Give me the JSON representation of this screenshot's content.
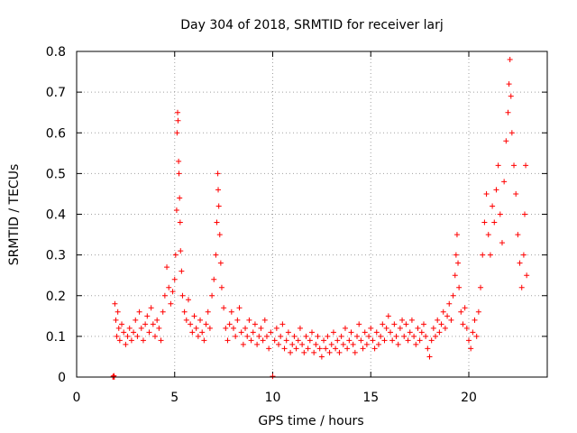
{
  "chart_data": {
    "type": "scatter",
    "title": "Day 304 of 2018, SRMTID for receiver larj",
    "xlabel": "GPS time / hours",
    "ylabel": "SRMTID / TECUs",
    "xlim": [
      0,
      24
    ],
    "ylim": [
      0,
      0.8
    ],
    "xticks": [
      0,
      5,
      10,
      15,
      20
    ],
    "yticks": [
      0,
      0.1,
      0.2,
      0.3,
      0.4,
      0.5,
      0.6,
      0.7,
      0.8
    ],
    "xtick_labels": [
      "0",
      "5",
      "10",
      "15",
      "20"
    ],
    "ytick_labels": [
      "0",
      "0.1",
      "0.2",
      "0.3",
      "0.4",
      "0.5",
      "0.6",
      "0.7",
      "0.8"
    ],
    "grid": true,
    "marker": "+",
    "color": "#ff0000",
    "series": [
      {
        "name": "SRMTID",
        "points": [
          [
            1.85,
            0.0
          ],
          [
            1.87,
            0.002
          ],
          [
            1.9,
            0.003
          ],
          [
            1.92,
            0.0
          ],
          [
            1.95,
            0.18
          ],
          [
            2.0,
            0.14
          ],
          [
            2.05,
            0.1
          ],
          [
            2.1,
            0.16
          ],
          [
            2.15,
            0.12
          ],
          [
            2.2,
            0.09
          ],
          [
            2.3,
            0.13
          ],
          [
            2.4,
            0.11
          ],
          [
            2.5,
            0.08
          ],
          [
            2.6,
            0.1
          ],
          [
            2.7,
            0.12
          ],
          [
            2.8,
            0.09
          ],
          [
            2.9,
            0.11
          ],
          [
            3.0,
            0.14
          ],
          [
            3.1,
            0.1
          ],
          [
            3.2,
            0.16
          ],
          [
            3.3,
            0.12
          ],
          [
            3.4,
            0.09
          ],
          [
            3.5,
            0.13
          ],
          [
            3.6,
            0.15
          ],
          [
            3.7,
            0.11
          ],
          [
            3.8,
            0.17
          ],
          [
            3.9,
            0.13
          ],
          [
            4.0,
            0.1
          ],
          [
            4.1,
            0.14
          ],
          [
            4.2,
            0.12
          ],
          [
            4.3,
            0.09
          ],
          [
            4.4,
            0.16
          ],
          [
            4.5,
            0.2
          ],
          [
            4.6,
            0.27
          ],
          [
            4.7,
            0.22
          ],
          [
            4.8,
            0.18
          ],
          [
            4.9,
            0.21
          ],
          [
            5.0,
            0.24
          ],
          [
            5.05,
            0.3
          ],
          [
            5.1,
            0.41
          ],
          [
            5.12,
            0.6
          ],
          [
            5.15,
            0.65
          ],
          [
            5.17,
            0.63
          ],
          [
            5.2,
            0.53
          ],
          [
            5.22,
            0.5
          ],
          [
            5.25,
            0.44
          ],
          [
            5.28,
            0.38
          ],
          [
            5.3,
            0.31
          ],
          [
            5.35,
            0.26
          ],
          [
            5.4,
            0.2
          ],
          [
            5.5,
            0.16
          ],
          [
            5.6,
            0.14
          ],
          [
            5.7,
            0.19
          ],
          [
            5.8,
            0.13
          ],
          [
            5.9,
            0.11
          ],
          [
            6.0,
            0.15
          ],
          [
            6.1,
            0.12
          ],
          [
            6.2,
            0.1
          ],
          [
            6.3,
            0.14
          ],
          [
            6.4,
            0.11
          ],
          [
            6.5,
            0.09
          ],
          [
            6.6,
            0.13
          ],
          [
            6.7,
            0.16
          ],
          [
            6.8,
            0.12
          ],
          [
            6.9,
            0.2
          ],
          [
            7.0,
            0.24
          ],
          [
            7.1,
            0.3
          ],
          [
            7.15,
            0.38
          ],
          [
            7.2,
            0.5
          ],
          [
            7.22,
            0.46
          ],
          [
            7.25,
            0.42
          ],
          [
            7.3,
            0.35
          ],
          [
            7.35,
            0.28
          ],
          [
            7.4,
            0.22
          ],
          [
            7.5,
            0.17
          ],
          [
            7.6,
            0.12
          ],
          [
            7.7,
            0.09
          ],
          [
            7.8,
            0.13
          ],
          [
            7.9,
            0.16
          ],
          [
            8.0,
            0.12
          ],
          [
            8.1,
            0.1
          ],
          [
            8.2,
            0.14
          ],
          [
            8.3,
            0.17
          ],
          [
            8.4,
            0.11
          ],
          [
            8.5,
            0.08
          ],
          [
            8.6,
            0.12
          ],
          [
            8.7,
            0.1
          ],
          [
            8.8,
            0.14
          ],
          [
            8.9,
            0.09
          ],
          [
            9.0,
            0.11
          ],
          [
            9.1,
            0.13
          ],
          [
            9.2,
            0.08
          ],
          [
            9.3,
            0.1
          ],
          [
            9.4,
            0.12
          ],
          [
            9.5,
            0.09
          ],
          [
            9.6,
            0.14
          ],
          [
            9.7,
            0.1
          ],
          [
            9.8,
            0.07
          ],
          [
            9.9,
            0.11
          ],
          [
            10.0,
            0.002
          ],
          [
            10.1,
            0.09
          ],
          [
            10.2,
            0.12
          ],
          [
            10.3,
            0.08
          ],
          [
            10.4,
            0.1
          ],
          [
            10.5,
            0.13
          ],
          [
            10.6,
            0.07
          ],
          [
            10.7,
            0.09
          ],
          [
            10.8,
            0.11
          ],
          [
            10.9,
            0.06
          ],
          [
            11.0,
            0.08
          ],
          [
            11.1,
            0.1
          ],
          [
            11.2,
            0.07
          ],
          [
            11.3,
            0.09
          ],
          [
            11.4,
            0.12
          ],
          [
            11.5,
            0.08
          ],
          [
            11.6,
            0.06
          ],
          [
            11.7,
            0.1
          ],
          [
            11.8,
            0.07
          ],
          [
            11.9,
            0.09
          ],
          [
            12.0,
            0.11
          ],
          [
            12.1,
            0.06
          ],
          [
            12.2,
            0.08
          ],
          [
            12.3,
            0.1
          ],
          [
            12.4,
            0.07
          ],
          [
            12.5,
            0.05
          ],
          [
            12.6,
            0.09
          ],
          [
            12.7,
            0.07
          ],
          [
            12.8,
            0.1
          ],
          [
            12.9,
            0.06
          ],
          [
            13.0,
            0.08
          ],
          [
            13.1,
            0.11
          ],
          [
            13.2,
            0.07
          ],
          [
            13.3,
            0.09
          ],
          [
            13.4,
            0.06
          ],
          [
            13.5,
            0.1
          ],
          [
            13.6,
            0.08
          ],
          [
            13.7,
            0.12
          ],
          [
            13.8,
            0.07
          ],
          [
            13.9,
            0.09
          ],
          [
            14.0,
            0.11
          ],
          [
            14.1,
            0.08
          ],
          [
            14.2,
            0.06
          ],
          [
            14.3,
            0.1
          ],
          [
            14.4,
            0.13
          ],
          [
            14.5,
            0.09
          ],
          [
            14.6,
            0.07
          ],
          [
            14.7,
            0.11
          ],
          [
            14.8,
            0.08
          ],
          [
            14.9,
            0.1
          ],
          [
            15.0,
            0.12
          ],
          [
            15.1,
            0.09
          ],
          [
            15.2,
            0.07
          ],
          [
            15.3,
            0.11
          ],
          [
            15.4,
            0.08
          ],
          [
            15.5,
            0.1
          ],
          [
            15.6,
            0.13
          ],
          [
            15.7,
            0.09
          ],
          [
            15.8,
            0.12
          ],
          [
            15.9,
            0.15
          ],
          [
            16.0,
            0.11
          ],
          [
            16.1,
            0.09
          ],
          [
            16.2,
            0.13
          ],
          [
            16.3,
            0.1
          ],
          [
            16.4,
            0.08
          ],
          [
            16.5,
            0.12
          ],
          [
            16.6,
            0.14
          ],
          [
            16.7,
            0.1
          ],
          [
            16.8,
            0.13
          ],
          [
            16.9,
            0.09
          ],
          [
            17.0,
            0.11
          ],
          [
            17.1,
            0.14
          ],
          [
            17.2,
            0.1
          ],
          [
            17.3,
            0.08
          ],
          [
            17.4,
            0.12
          ],
          [
            17.5,
            0.09
          ],
          [
            17.6,
            0.11
          ],
          [
            17.7,
            0.13
          ],
          [
            17.8,
            0.1
          ],
          [
            17.9,
            0.07
          ],
          [
            18.0,
            0.05
          ],
          [
            18.1,
            0.09
          ],
          [
            18.2,
            0.12
          ],
          [
            18.3,
            0.1
          ],
          [
            18.4,
            0.14
          ],
          [
            18.5,
            0.11
          ],
          [
            18.6,
            0.13
          ],
          [
            18.7,
            0.16
          ],
          [
            18.8,
            0.12
          ],
          [
            18.9,
            0.15
          ],
          [
            19.0,
            0.18
          ],
          [
            19.1,
            0.14
          ],
          [
            19.2,
            0.2
          ],
          [
            19.3,
            0.25
          ],
          [
            19.35,
            0.3
          ],
          [
            19.4,
            0.35
          ],
          [
            19.45,
            0.28
          ],
          [
            19.5,
            0.22
          ],
          [
            19.6,
            0.16
          ],
          [
            19.7,
            0.13
          ],
          [
            19.8,
            0.17
          ],
          [
            19.9,
            0.12
          ],
          [
            20.0,
            0.09
          ],
          [
            20.1,
            0.07
          ],
          [
            20.2,
            0.11
          ],
          [
            20.3,
            0.14
          ],
          [
            20.4,
            0.1
          ],
          [
            20.5,
            0.16
          ],
          [
            20.6,
            0.22
          ],
          [
            20.7,
            0.3
          ],
          [
            20.8,
            0.38
          ],
          [
            20.9,
            0.45
          ],
          [
            21.0,
            0.35
          ],
          [
            21.1,
            0.3
          ],
          [
            21.2,
            0.42
          ],
          [
            21.3,
            0.38
          ],
          [
            21.4,
            0.46
          ],
          [
            21.5,
            0.52
          ],
          [
            21.6,
            0.4
          ],
          [
            21.7,
            0.33
          ],
          [
            21.8,
            0.48
          ],
          [
            21.9,
            0.58
          ],
          [
            22.0,
            0.65
          ],
          [
            22.05,
            0.72
          ],
          [
            22.1,
            0.78
          ],
          [
            22.15,
            0.69
          ],
          [
            22.2,
            0.6
          ],
          [
            22.3,
            0.52
          ],
          [
            22.4,
            0.45
          ],
          [
            22.5,
            0.35
          ],
          [
            22.6,
            0.28
          ],
          [
            22.7,
            0.22
          ],
          [
            22.8,
            0.3
          ],
          [
            22.85,
            0.4
          ],
          [
            22.9,
            0.52
          ],
          [
            22.95,
            0.25
          ]
        ]
      }
    ]
  }
}
